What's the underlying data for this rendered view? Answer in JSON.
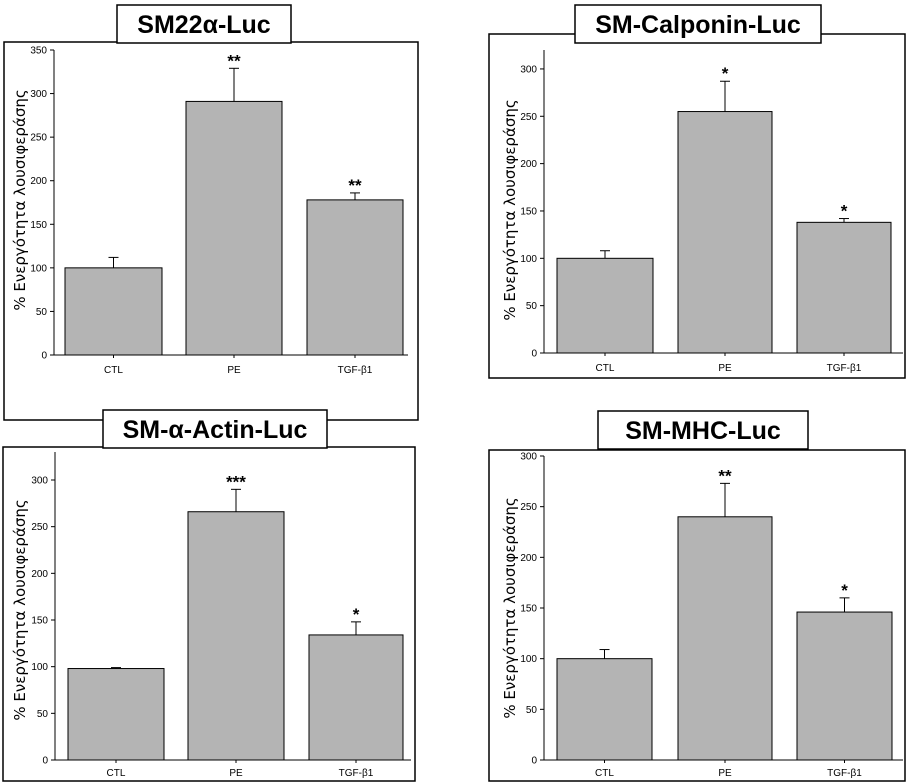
{
  "chart_data": [
    {
      "type": "bar",
      "title": "SM22α-Luc",
      "ylabel": "% Ενεργότητα λουσιφεράσης",
      "categories": [
        "CTL",
        "PE",
        "TGF-β1"
      ],
      "values": [
        100,
        291,
        178
      ],
      "errors": [
        12,
        38,
        8
      ],
      "significance": [
        "",
        "**",
        "**"
      ],
      "ylim": [
        0,
        350
      ],
      "yticks": [
        0,
        50,
        100,
        150,
        200,
        250,
        300,
        350
      ]
    },
    {
      "type": "bar",
      "title": "SM-Calponin-Luc",
      "ylabel": "% Ενεργότητα λουσιφεράσης",
      "categories": [
        "CTL",
        "PE",
        "TGF-β1"
      ],
      "values": [
        100,
        255,
        138
      ],
      "errors": [
        8,
        32,
        4
      ],
      "significance": [
        "",
        "*",
        "*"
      ],
      "ylim": [
        0,
        320
      ],
      "yticks": [
        0,
        50,
        100,
        150,
        200,
        250,
        300
      ]
    },
    {
      "type": "bar",
      "title": "SM-α-Actin-Luc",
      "ylabel": "% Ενεργότητα λουσιφεράσης",
      "categories": [
        "CTL",
        "PE",
        "TGF-β1"
      ],
      "values": [
        98,
        266,
        134
      ],
      "errors": [
        1,
        24,
        14
      ],
      "significance": [
        "",
        "***",
        "*"
      ],
      "ylim": [
        0,
        330
      ],
      "yticks": [
        0,
        50,
        100,
        150,
        200,
        250,
        300
      ]
    },
    {
      "type": "bar",
      "title": "SM-MHC-Luc",
      "ylabel": "% Ενεργότητα λουσιφεράσης",
      "categories": [
        "CTL",
        "PE",
        "TGF-β1"
      ],
      "values": [
        100,
        240,
        146
      ],
      "errors": [
        9,
        33,
        14
      ],
      "significance": [
        "",
        "**",
        "*"
      ],
      "ylim": [
        0,
        300
      ],
      "yticks": [
        0,
        50,
        100,
        150,
        200,
        250,
        300
      ]
    }
  ]
}
